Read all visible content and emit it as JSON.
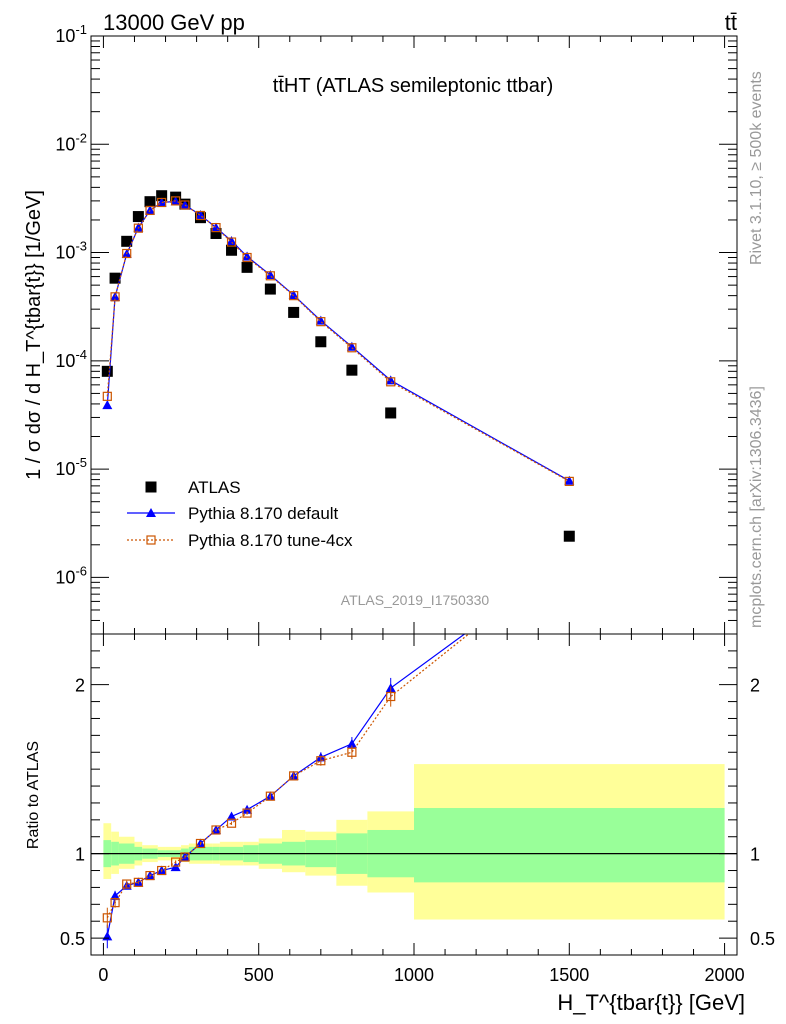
{
  "header": {
    "left": "13000 GeV pp",
    "right": "tt̄"
  },
  "side_labels": {
    "rivet": "Rivet 3.1.10, ≥ 500k events",
    "mcplots": "mcplots.cern.ch [arXiv:1306.3436]"
  },
  "analysis_id": "ATLAS_2019_I1750330",
  "chart_data": [
    {
      "type": "scatter",
      "panel": "main",
      "title": "tt̄HT (ATLAS semileptonic ttbar)",
      "ylabel": "1 / σ dσ / d H_T^{tbar{t}} [1/GeV]",
      "yscale": "log",
      "ylim": [
        3e-07,
        0.1
      ],
      "xlim": [
        -40,
        2040
      ],
      "y_tick_labels": [
        "10^-6",
        "10^-5",
        "10^-4",
        "10^-3",
        "10^-2",
        "10^-1"
      ],
      "legend_position": "lower-left",
      "series": [
        {
          "name": "ATLAS",
          "color": "#000000",
          "marker": "filled-square",
          "x": [
            12.5,
            37.5,
            75,
            112.5,
            150,
            187.5,
            232.5,
            262.5,
            312.5,
            362.5,
            412.5,
            462.5,
            537.5,
            612.5,
            700,
            800,
            925,
            1500
          ],
          "y": [
            8e-05,
            0.00058,
            0.00127,
            0.00215,
            0.00295,
            0.00335,
            0.00325,
            0.0028,
            0.0021,
            0.0015,
            0.00105,
            0.00073,
            0.00046,
            0.00028,
            0.00015,
            8.2e-05,
            3.3e-05,
            2.4e-06
          ]
        },
        {
          "name": "Pythia 8.170 default",
          "color": "#0000ff",
          "marker": "filled-triangle",
          "x": [
            12.5,
            37.5,
            75,
            112.5,
            150,
            187.5,
            232.5,
            262.5,
            312.5,
            362.5,
            412.5,
            462.5,
            537.5,
            612.5,
            700,
            800,
            925,
            1500
          ],
          "y": [
            3.9e-05,
            0.00039,
            0.00097,
            0.0017,
            0.00245,
            0.0029,
            0.00297,
            0.00275,
            0.00222,
            0.0017,
            0.00128,
            0.00092,
            0.00062,
            0.000405,
            0.000235,
            0.000135,
            6.6e-05,
            7.8e-06
          ]
        },
        {
          "name": "Pythia 8.170 tune-4cx",
          "color": "#cc5500",
          "marker": "open-square",
          "x": [
            12.5,
            37.5,
            75,
            112.5,
            150,
            187.5,
            232.5,
            262.5,
            312.5,
            362.5,
            412.5,
            462.5,
            537.5,
            612.5,
            700,
            800,
            925,
            1500
          ],
          "y": [
            4.7e-05,
            0.00039,
            0.00098,
            0.00168,
            0.00245,
            0.0029,
            0.003,
            0.00275,
            0.0022,
            0.0017,
            0.00125,
            0.0009,
            0.00061,
            0.0004,
            0.00023,
            0.000132,
            6.4e-05,
            7.7e-06
          ]
        }
      ]
    },
    {
      "type": "line",
      "panel": "ratio",
      "ylabel": "Ratio to ATLAS",
      "xlabel": "H_T^{tbar{t}} [GeV]",
      "xlim": [
        -40,
        2040
      ],
      "ylim": [
        0.4,
        2.3
      ],
      "x_ticks": [
        0,
        500,
        1000,
        1500,
        2000
      ],
      "y_ticks": [
        0.5,
        1,
        2
      ],
      "reference_line": 1,
      "uncertainty_bands": {
        "edges": [
          0,
          25,
          50,
          100,
          125,
          175,
          200,
          250,
          275,
          350,
          375,
          450,
          500,
          575,
          650,
          750,
          850,
          1000,
          2000
        ],
        "yellow": [
          [
            0.85,
            1.18
          ],
          [
            0.88,
            1.13
          ],
          [
            0.91,
            1.1
          ],
          [
            0.93,
            1.07
          ],
          [
            0.95,
            1.05
          ],
          [
            0.96,
            1.04
          ],
          [
            0.96,
            1.04
          ],
          [
            0.95,
            1.05
          ],
          [
            0.94,
            1.06
          ],
          [
            0.94,
            1.06
          ],
          [
            0.93,
            1.07
          ],
          [
            0.93,
            1.07
          ],
          [
            0.91,
            1.09
          ],
          [
            0.89,
            1.14
          ],
          [
            0.87,
            1.13
          ],
          [
            0.81,
            1.2
          ],
          [
            0.77,
            1.25
          ],
          [
            0.61,
            1.53
          ],
          [
            0.61,
            1.53
          ]
        ],
        "green": [
          [
            0.92,
            1.08
          ],
          [
            0.93,
            1.07
          ],
          [
            0.94,
            1.06
          ],
          [
            0.96,
            1.04
          ],
          [
            0.97,
            1.03
          ],
          [
            0.98,
            1.02
          ],
          [
            0.98,
            1.02
          ],
          [
            0.97,
            1.03
          ],
          [
            0.96,
            1.04
          ],
          [
            0.96,
            1.04
          ],
          [
            0.96,
            1.04
          ],
          [
            0.95,
            1.05
          ],
          [
            0.94,
            1.06
          ],
          [
            0.93,
            1.07
          ],
          [
            0.92,
            1.08
          ],
          [
            0.88,
            1.12
          ],
          [
            0.86,
            1.14
          ],
          [
            0.83,
            1.27
          ],
          [
            0.83,
            1.27
          ]
        ],
        "yellow_color": "#ffff99",
        "green_color": "#99ff99"
      },
      "series": [
        {
          "name": "Pythia 8.170 default",
          "color": "#0000ff",
          "marker": "filled-triangle",
          "x": [
            12.5,
            37.5,
            75,
            112.5,
            150,
            187.5,
            232.5,
            262.5,
            312.5,
            362.5,
            412.5,
            462.5,
            537.5,
            612.5,
            700,
            800,
            925
          ],
          "y": [
            0.51,
            0.75,
            0.81,
            0.83,
            0.87,
            0.9,
            0.92,
            0.98,
            1.06,
            1.14,
            1.22,
            1.26,
            1.34,
            1.46,
            1.57,
            1.65,
            1.98
          ],
          "yerr": [
            0.07,
            0.03,
            0.02,
            0.01,
            0.01,
            0.01,
            0.01,
            0.01,
            0.01,
            0.01,
            0.01,
            0.01,
            0.02,
            0.02,
            0.03,
            0.04,
            0.06
          ],
          "extends_to": [
            1200,
            2.35
          ]
        },
        {
          "name": "Pythia 8.170 tune-4cx",
          "color": "#cc5500",
          "marker": "open-square",
          "x": [
            12.5,
            37.5,
            75,
            112.5,
            150,
            187.5,
            232.5,
            262.5,
            312.5,
            362.5,
            412.5,
            462.5,
            537.5,
            612.5,
            700,
            800,
            925
          ],
          "y": [
            0.62,
            0.71,
            0.82,
            0.83,
            0.87,
            0.9,
            0.95,
            0.98,
            1.06,
            1.14,
            1.18,
            1.24,
            1.34,
            1.46,
            1.55,
            1.6,
            1.93
          ],
          "yerr": [
            0.06,
            0.03,
            0.02,
            0.01,
            0.01,
            0.01,
            0.01,
            0.01,
            0.01,
            0.01,
            0.01,
            0.01,
            0.02,
            0.02,
            0.03,
            0.04,
            0.06
          ],
          "extends_to": [
            1210,
            2.35
          ]
        }
      ]
    }
  ]
}
